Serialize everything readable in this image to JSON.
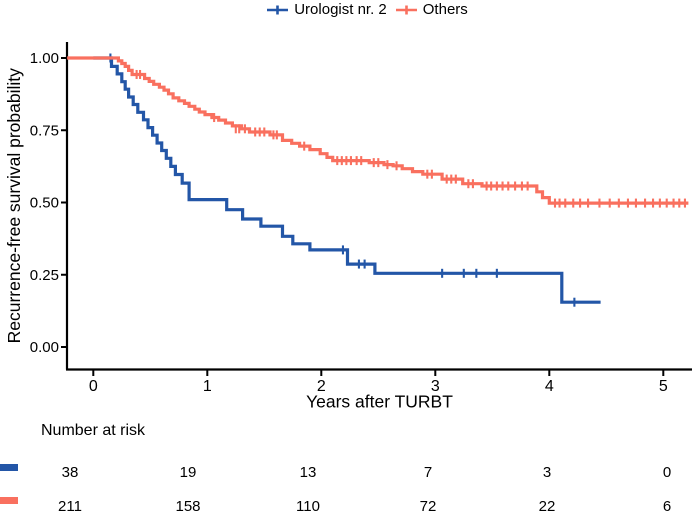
{
  "legend": {
    "items": [
      {
        "label": "Urologist nr. 2",
        "color": "#2356A7"
      },
      {
        "label": "Others",
        "color": "#F9705F"
      }
    ]
  },
  "chart_data": {
    "type": "line",
    "subtype": "kaplan-meier-step",
    "title": "",
    "xlabel": "Years after TURBT",
    "ylabel": "Recurrence-free survival probability",
    "xlim": [
      -0.23,
      5.25
    ],
    "ylim": [
      0,
      1
    ],
    "grid": false,
    "legend_position": "top",
    "x_ticks": {
      "values": [
        0,
        1,
        2,
        3,
        4,
        5
      ],
      "labels": [
        "0",
        "1",
        "2",
        "3",
        "4",
        "5"
      ]
    },
    "y_ticks": {
      "values": [
        0,
        0.25,
        0.5,
        0.75,
        1
      ],
      "labels": [
        "0.00",
        "0.25",
        "0.50",
        "0.75",
        "1.00"
      ]
    },
    "series": [
      {
        "name": "Urologist nr. 2",
        "color": "#2356A7",
        "steps": [
          [
            0,
            1.0
          ],
          [
            0.16,
            0.971
          ],
          [
            0.21,
            0.945
          ],
          [
            0.25,
            0.918
          ],
          [
            0.28,
            0.892
          ],
          [
            0.31,
            0.865
          ],
          [
            0.35,
            0.839
          ],
          [
            0.39,
            0.812
          ],
          [
            0.44,
            0.786
          ],
          [
            0.48,
            0.759
          ],
          [
            0.52,
            0.733
          ],
          [
            0.56,
            0.706
          ],
          [
            0.6,
            0.68
          ],
          [
            0.64,
            0.653
          ],
          [
            0.68,
            0.625
          ],
          [
            0.72,
            0.597
          ],
          [
            0.78,
            0.567
          ],
          [
            0.84,
            0.51
          ],
          [
            1.17,
            0.475
          ],
          [
            1.31,
            0.443
          ],
          [
            1.47,
            0.418
          ],
          [
            1.66,
            0.383
          ],
          [
            1.75,
            0.357
          ],
          [
            1.9,
            0.336
          ],
          [
            2.23,
            0.287
          ],
          [
            2.47,
            0.255
          ],
          [
            4.11,
            0.155
          ],
          [
            4.45,
            0.155
          ]
        ],
        "censors": [
          [
            0.15,
            1.0
          ],
          [
            2.19,
            0.336
          ],
          [
            2.33,
            0.287
          ],
          [
            2.38,
            0.287
          ],
          [
            3.06,
            0.255
          ],
          [
            3.25,
            0.255
          ],
          [
            3.36,
            0.255
          ],
          [
            3.54,
            0.255
          ],
          [
            4.22,
            0.155
          ]
        ]
      },
      {
        "name": "Others",
        "color": "#F9705F",
        "steps": [
          [
            -0.23,
            1.0
          ],
          [
            0.22,
            0.99
          ],
          [
            0.25,
            0.981
          ],
          [
            0.28,
            0.971
          ],
          [
            0.31,
            0.957
          ],
          [
            0.34,
            0.943
          ],
          [
            0.45,
            0.929
          ],
          [
            0.49,
            0.919
          ],
          [
            0.53,
            0.909
          ],
          [
            0.58,
            0.899
          ],
          [
            0.62,
            0.889
          ],
          [
            0.66,
            0.876
          ],
          [
            0.7,
            0.862
          ],
          [
            0.75,
            0.852
          ],
          [
            0.8,
            0.843
          ],
          [
            0.84,
            0.833
          ],
          [
            0.89,
            0.823
          ],
          [
            0.93,
            0.813
          ],
          [
            0.98,
            0.804
          ],
          [
            1.04,
            0.794
          ],
          [
            1.1,
            0.785
          ],
          [
            1.16,
            0.775
          ],
          [
            1.22,
            0.765
          ],
          [
            1.3,
            0.755
          ],
          [
            1.37,
            0.744
          ],
          [
            1.55,
            0.734
          ],
          [
            1.66,
            0.715
          ],
          [
            1.74,
            0.705
          ],
          [
            1.81,
            0.695
          ],
          [
            1.9,
            0.683
          ],
          [
            1.99,
            0.669
          ],
          [
            2.05,
            0.656
          ],
          [
            2.1,
            0.645
          ],
          [
            2.42,
            0.638
          ],
          [
            2.55,
            0.631
          ],
          [
            2.63,
            0.627
          ],
          [
            2.71,
            0.617
          ],
          [
            2.8,
            0.607
          ],
          [
            2.89,
            0.598
          ],
          [
            3.06,
            0.581
          ],
          [
            3.24,
            0.565
          ],
          [
            3.41,
            0.557
          ],
          [
            3.89,
            0.537
          ],
          [
            3.94,
            0.517
          ],
          [
            4.0,
            0.498
          ],
          [
            5.22,
            0.498
          ]
        ],
        "censors": [
          [
            0.38,
            0.943
          ],
          [
            0.41,
            0.943
          ],
          [
            1.06,
            0.794
          ],
          [
            1.25,
            0.755
          ],
          [
            1.28,
            0.755
          ],
          [
            1.33,
            0.755
          ],
          [
            1.42,
            0.744
          ],
          [
            1.46,
            0.744
          ],
          [
            1.5,
            0.744
          ],
          [
            1.58,
            0.734
          ],
          [
            1.61,
            0.734
          ],
          [
            1.85,
            0.695
          ],
          [
            2.14,
            0.645
          ],
          [
            2.18,
            0.645
          ],
          [
            2.22,
            0.645
          ],
          [
            2.26,
            0.645
          ],
          [
            2.31,
            0.645
          ],
          [
            2.35,
            0.645
          ],
          [
            2.46,
            0.638
          ],
          [
            2.5,
            0.638
          ],
          [
            2.58,
            0.631
          ],
          [
            2.66,
            0.627
          ],
          [
            2.93,
            0.598
          ],
          [
            2.97,
            0.598
          ],
          [
            3.1,
            0.581
          ],
          [
            3.14,
            0.581
          ],
          [
            3.18,
            0.581
          ],
          [
            3.29,
            0.565
          ],
          [
            3.33,
            0.565
          ],
          [
            3.45,
            0.557
          ],
          [
            3.49,
            0.557
          ],
          [
            3.54,
            0.557
          ],
          [
            3.59,
            0.557
          ],
          [
            3.64,
            0.557
          ],
          [
            3.7,
            0.557
          ],
          [
            3.76,
            0.557
          ],
          [
            3.81,
            0.557
          ],
          [
            4.05,
            0.498
          ],
          [
            4.09,
            0.498
          ],
          [
            4.14,
            0.498
          ],
          [
            4.21,
            0.498
          ],
          [
            4.27,
            0.498
          ],
          [
            4.34,
            0.498
          ],
          [
            4.44,
            0.498
          ],
          [
            4.53,
            0.498
          ],
          [
            4.61,
            0.498
          ],
          [
            4.69,
            0.498
          ],
          [
            4.76,
            0.498
          ],
          [
            4.84,
            0.498
          ],
          [
            4.91,
            0.498
          ],
          [
            4.97,
            0.498
          ],
          [
            5.03,
            0.498
          ],
          [
            5.09,
            0.498
          ],
          [
            5.14,
            0.498
          ],
          [
            5.19,
            0.498
          ]
        ]
      }
    ]
  },
  "risk_table": {
    "title": "Number at risk",
    "time_points": [
      0,
      1,
      2,
      3,
      4,
      5
    ],
    "rows": [
      {
        "name": "Urologist nr. 2",
        "color": "#2356A7",
        "values": [
          "38",
          "19",
          "13",
          "7",
          "3",
          "0"
        ]
      },
      {
        "name": "Others",
        "color": "#F9705F",
        "values": [
          "211",
          "158",
          "110",
          "72",
          "22",
          "6"
        ]
      }
    ]
  }
}
